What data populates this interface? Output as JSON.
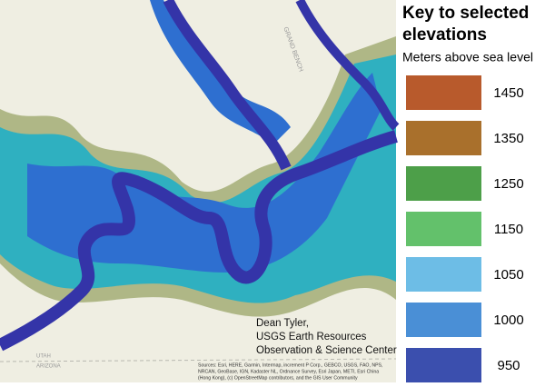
{
  "legend": {
    "title": "Key to selected elevations",
    "subtitle": "Meters above sea level",
    "items": [
      {
        "label": "1450",
        "color": "#b85a2c"
      },
      {
        "label": "1350",
        "color": "#a9702c"
      },
      {
        "label": "1250",
        "color": "#4d9f49"
      },
      {
        "label": "1150",
        "color": "#63c16b"
      },
      {
        "label": "1050",
        "color": "#6dbde6"
      },
      {
        "label": "1000",
        "color": "#4a8fd6"
      },
      {
        "label": "950",
        "color": "#3b4fae"
      }
    ]
  },
  "map": {
    "labels": {
      "bench": "GRAND BENCH",
      "utah": "UTAH",
      "arizona": "ARIZONA"
    },
    "credit": [
      "Dean Tyler,",
      "USGS Earth Resources",
      "Observation & Science Center"
    ],
    "sources": [
      "Sources: Esri, HERE, Garmin, Intermap, increment P Corp., GEBCO, USGS, FAO, NPS,",
      "NRCAN, GeoBase, IGN, Kadaster NL, Ordnance Survey, Esri Japan, METI, Esri China",
      "(Hong Kong), (c) OpenStreetMap contributors, and the GIS User Community"
    ]
  }
}
